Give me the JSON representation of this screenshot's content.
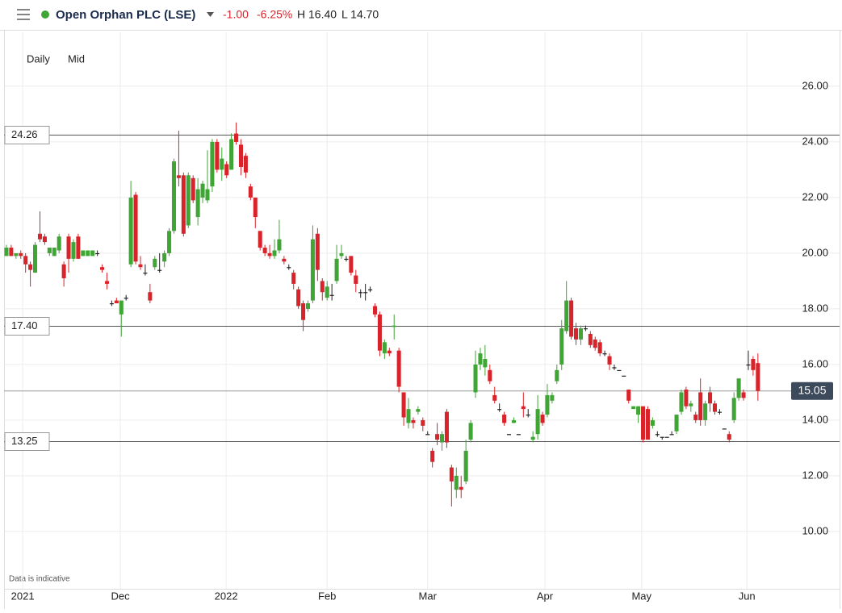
{
  "chart_data": {
    "type": "candlestick",
    "title": "Open Orphan PLC (LSE)",
    "change": "-1.00",
    "change_pct": "-6.25%",
    "high": "H 16.40",
    "low": "L 14.70",
    "interval": "Daily",
    "price_type": "Mid",
    "note": "Data is indicative",
    "up_color": "#3fa535",
    "down_color": "#d9232a",
    "ylim": [
      7.94,
      27.94
    ],
    "yticks": [
      {
        "value": 10,
        "label": "10.00"
      },
      {
        "value": 12,
        "label": "12.00"
      },
      {
        "value": 14,
        "label": "14.00"
      },
      {
        "value": 16,
        "label": "16.00"
      },
      {
        "value": 18,
        "label": "18.00"
      },
      {
        "value": 20,
        "label": "20.00"
      },
      {
        "value": 22,
        "label": "22.00"
      },
      {
        "value": 24,
        "label": "24.00"
      },
      {
        "value": 26,
        "label": "26.00"
      }
    ],
    "xlim": [
      -0.5,
      163.1
    ],
    "xticks": [
      {
        "value": 3.4,
        "label": "2021"
      },
      {
        "value": 23.8,
        "label": "Dec"
      },
      {
        "value": 45.9,
        "label": "2022"
      },
      {
        "value": 67,
        "label": "Feb"
      },
      {
        "value": 88,
        "label": "Mar"
      },
      {
        "value": 112.5,
        "label": "Apr"
      },
      {
        "value": 132.7,
        "label": "May"
      },
      {
        "value": 154.7,
        "label": "Jun"
      }
    ],
    "levels": [
      24.26,
      {
        "value": 17.4,
        "label": "17.40"
      },
      13.25
    ],
    "last_price": 15.05,
    "ohlc": [
      [
        19.9,
        20.3,
        19.9,
        20.2
      ],
      [
        20.2,
        20.3,
        19.9,
        19.9
      ],
      [
        19.9,
        20.0,
        19.8,
        20.0
      ],
      [
        20.0,
        20.1,
        19.8,
        19.9
      ],
      [
        19.9,
        20.0,
        19.3,
        19.6
      ],
      [
        19.6,
        19.7,
        18.8,
        19.4
      ],
      [
        19.3,
        20.4,
        19.3,
        20.3
      ],
      [
        20.7,
        21.5,
        20.4,
        20.5
      ],
      [
        20.6,
        20.7,
        20.3,
        20.4
      ],
      [
        20.0,
        20.2,
        19.9,
        20.2
      ],
      [
        19.9,
        20.2,
        19.9,
        20.2
      ],
      [
        20.1,
        20.7,
        20.0,
        20.6
      ],
      [
        19.6,
        19.7,
        18.8,
        19.1
      ],
      [
        20.6,
        20.7,
        19.3,
        19.8
      ],
      [
        19.8,
        20.5,
        19.7,
        20.4
      ],
      [
        20.6,
        20.7,
        19.8,
        19.8
      ],
      [
        19.9,
        20.1,
        19.9,
        20.1
      ],
      [
        19.9,
        20.1,
        19.9,
        20.1
      ],
      [
        19.9,
        20.1,
        19.9,
        20.1
      ],
      [
        20.0,
        20.1,
        19.9,
        20.0
      ],
      [
        19.5,
        19.6,
        19.3,
        19.4
      ],
      [
        19.0,
        19.3,
        18.7,
        18.9
      ],
      [
        18.2,
        18.3,
        18.1,
        18.2
      ],
      [
        18.3,
        18.4,
        18.2,
        18.2
      ],
      [
        17.8,
        18.3,
        17.0,
        18.3
      ],
      [
        18.4,
        18.5,
        18.3,
        18.4
      ],
      [
        19.6,
        22.6,
        19.5,
        22.0
      ],
      [
        22.1,
        22.2,
        19.6,
        19.7
      ],
      [
        19.6,
        19.9,
        19.4,
        19.5
      ],
      [
        19.3,
        19.6,
        19.2,
        19.3
      ],
      [
        18.6,
        18.9,
        18.2,
        18.3
      ],
      [
        19.5,
        19.9,
        19.4,
        19.8
      ],
      [
        19.4,
        20.0,
        19.3,
        19.4
      ],
      [
        19.7,
        20.1,
        19.5,
        20.0
      ],
      [
        20.0,
        20.9,
        19.9,
        20.8
      ],
      [
        20.8,
        23.4,
        20.7,
        23.3
      ],
      [
        22.8,
        24.4,
        22.4,
        22.7
      ],
      [
        22.8,
        22.9,
        20.6,
        20.7
      ],
      [
        21.0,
        22.9,
        20.9,
        22.8
      ],
      [
        22.7,
        22.8,
        21.8,
        21.9
      ],
      [
        21.3,
        22.7,
        21.0,
        22.3
      ],
      [
        22.0,
        22.6,
        21.8,
        22.5
      ],
      [
        21.9,
        23.7,
        21.8,
        22.3
      ],
      [
        22.4,
        24.1,
        22.2,
        24.0
      ],
      [
        24.0,
        24.1,
        22.9,
        23.0
      ],
      [
        23.0,
        23.8,
        22.6,
        23.4
      ],
      [
        23.2,
        23.3,
        22.7,
        22.8
      ],
      [
        23.0,
        24.3,
        23.0,
        24.1
      ],
      [
        24.3,
        24.7,
        23.9,
        24.0
      ],
      [
        23.9,
        24.1,
        22.8,
        23.1
      ],
      [
        23.5,
        23.6,
        22.7,
        22.9
      ],
      [
        22.4,
        22.5,
        21.9,
        22.0
      ],
      [
        22.0,
        22.0,
        20.9,
        21.3
      ],
      [
        20.8,
        20.8,
        20.1,
        20.2
      ],
      [
        20.2,
        20.3,
        19.9,
        20.0
      ],
      [
        20.0,
        20.3,
        19.8,
        19.9
      ],
      [
        19.9,
        20.5,
        19.8,
        20.1
      ],
      [
        20.1,
        21.2,
        20.0,
        20.5
      ],
      [
        19.8,
        19.9,
        19.6,
        19.7
      ],
      [
        19.5,
        19.6,
        19.4,
        19.5
      ],
      [
        19.3,
        19.4,
        18.7,
        18.9
      ],
      [
        18.7,
        18.8,
        18.0,
        18.1
      ],
      [
        18.2,
        18.3,
        17.2,
        17.6
      ],
      [
        18.0,
        18.3,
        17.9,
        18.2
      ],
      [
        18.3,
        21.0,
        18.2,
        20.5
      ],
      [
        20.7,
        20.9,
        19.0,
        19.4
      ],
      [
        19.0,
        19.1,
        18.3,
        18.6
      ],
      [
        18.4,
        19.0,
        18.3,
        18.8
      ],
      [
        18.5,
        18.9,
        18.3,
        18.5
      ],
      [
        19.0,
        20.3,
        18.9,
        19.8
      ],
      [
        19.9,
        20.3,
        19.8,
        20.0
      ],
      [
        19.8,
        19.9,
        19.7,
        19.8
      ],
      [
        19.9,
        19.9,
        19.2,
        19.3
      ],
      [
        19.2,
        19.4,
        18.6,
        18.9
      ],
      [
        18.6,
        18.7,
        18.4,
        18.6
      ],
      [
        18.6,
        18.9,
        18.3,
        18.6
      ],
      [
        18.7,
        18.8,
        18.6,
        18.7
      ],
      [
        18.1,
        18.2,
        17.7,
        17.8
      ],
      [
        17.8,
        17.9,
        16.3,
        16.5
      ],
      [
        16.4,
        16.9,
        16.2,
        16.8
      ],
      [
        16.5,
        16.6,
        16.3,
        16.4
      ],
      [
        17.35,
        17.8,
        16.9,
        17.4
      ],
      [
        16.5,
        16.6,
        15.0,
        15.2
      ],
      [
        15.0,
        15.0,
        13.8,
        14.1
      ],
      [
        13.9,
        14.8,
        13.7,
        14.4
      ],
      [
        14.0,
        14.1,
        13.7,
        13.9
      ],
      [
        14.3,
        14.5,
        14.2,
        14.4
      ],
      [
        14.0,
        14.1,
        13.6,
        13.8
      ],
      [
        13.5,
        13.6,
        13.5,
        13.5
      ],
      [
        12.9,
        13.0,
        12.3,
        12.5
      ],
      [
        13.5,
        13.9,
        13.1,
        13.3
      ],
      [
        13.2,
        13.6,
        12.9,
        13.5
      ],
      [
        14.3,
        14.4,
        13.0,
        13.2
      ],
      [
        12.3,
        12.4,
        10.9,
        11.8
      ],
      [
        11.5,
        12.3,
        11.2,
        12.0
      ],
      [
        11.6,
        12.0,
        11.2,
        11.5
      ],
      [
        11.8,
        13.3,
        11.7,
        12.9
      ],
      [
        13.3,
        14.0,
        13.2,
        13.9
      ],
      [
        15.0,
        16.5,
        14.8,
        16.0
      ],
      [
        16.0,
        16.6,
        15.8,
        16.4
      ],
      [
        15.9,
        16.7,
        15.6,
        16.2
      ],
      [
        15.8,
        16.0,
        15.3,
        15.4
      ],
      [
        14.9,
        15.2,
        14.6,
        14.7
      ],
      [
        14.4,
        14.6,
        14.3,
        14.4
      ],
      [
        14.2,
        14.3,
        13.8,
        13.9
      ],
      [
        13.5,
        13.5,
        13.5,
        13.5
      ],
      [
        13.9,
        14.1,
        13.9,
        14.0
      ],
      [
        13.5,
        13.5,
        13.5,
        13.5
      ],
      [
        14.5,
        15.0,
        14.1,
        14.4
      ],
      [
        14.2,
        14.4,
        14.1,
        14.2
      ],
      [
        13.3,
        13.6,
        13.2,
        13.4
      ],
      [
        13.5,
        14.9,
        13.3,
        14.4
      ],
      [
        14.2,
        14.3,
        13.8,
        13.9
      ],
      [
        14.2,
        15.3,
        14.1,
        14.9
      ],
      [
        14.7,
        15.0,
        14.6,
        14.9
      ],
      [
        15.4,
        16.0,
        15.3,
        15.8
      ],
      [
        16.0,
        17.6,
        15.8,
        17.3
      ],
      [
        17.2,
        19.0,
        17.1,
        18.3
      ],
      [
        18.3,
        18.4,
        16.9,
        17.0
      ],
      [
        17.3,
        17.5,
        16.7,
        16.9
      ],
      [
        16.9,
        17.4,
        16.7,
        17.3
      ],
      [
        17.3,
        17.4,
        17.2,
        17.3
      ],
      [
        17.1,
        17.2,
        16.6,
        16.7
      ],
      [
        16.9,
        17.0,
        16.5,
        16.6
      ],
      [
        16.8,
        16.9,
        16.3,
        16.4
      ],
      [
        16.4,
        16.5,
        16.3,
        16.4
      ],
      [
        16.3,
        16.4,
        15.8,
        16.0
      ],
      [
        15.9,
        16.0,
        15.8,
        15.9
      ],
      [
        15.8,
        15.8,
        15.8,
        15.8
      ],
      [
        15.6,
        15.6,
        15.6,
        15.6
      ],
      [
        15.1,
        15.1,
        14.6,
        14.7
      ],
      [
        14.4,
        14.5,
        14.4,
        14.5
      ],
      [
        14.2,
        14.5,
        13.9,
        14.5
      ],
      [
        14.5,
        14.5,
        13.2,
        13.3
      ],
      [
        14.4,
        14.5,
        13.3,
        13.3
      ],
      [
        13.8,
        14.1,
        13.7,
        14.0
      ],
      [
        13.5,
        13.6,
        13.4,
        13.5
      ],
      [
        13.4,
        13.4,
        13.3,
        13.4
      ],
      [
        13.4,
        13.4,
        13.4,
        13.4
      ],
      [
        13.5,
        13.6,
        13.5,
        13.5
      ],
      [
        13.6,
        14.2,
        13.5,
        14.2
      ],
      [
        14.3,
        15.1,
        14.2,
        15.0
      ],
      [
        15.1,
        15.2,
        14.4,
        14.5
      ],
      [
        14.5,
        14.7,
        14.3,
        14.6
      ],
      [
        14.2,
        14.3,
        13.9,
        14.0
      ],
      [
        15.0,
        15.5,
        13.8,
        14.0
      ],
      [
        14.0,
        14.7,
        13.8,
        14.6
      ],
      [
        15.0,
        15.2,
        14.3,
        14.6
      ],
      [
        14.6,
        14.7,
        14.2,
        14.3
      ],
      [
        14.3,
        14.4,
        14.2,
        14.3
      ],
      [
        13.7,
        13.7,
        13.7,
        13.7
      ],
      [
        13.5,
        13.6,
        13.2,
        13.3
      ],
      [
        14.0,
        15.0,
        13.9,
        14.8
      ],
      [
        14.8,
        15.5,
        14.7,
        15.5
      ],
      [
        15.0,
        15.1,
        14.7,
        14.8
      ],
      [
        16.0,
        16.5,
        15.8,
        16.0
      ],
      [
        16.2,
        16.3,
        15.6,
        15.8
      ],
      [
        16.05,
        16.4,
        14.7,
        15.05
      ]
    ]
  }
}
